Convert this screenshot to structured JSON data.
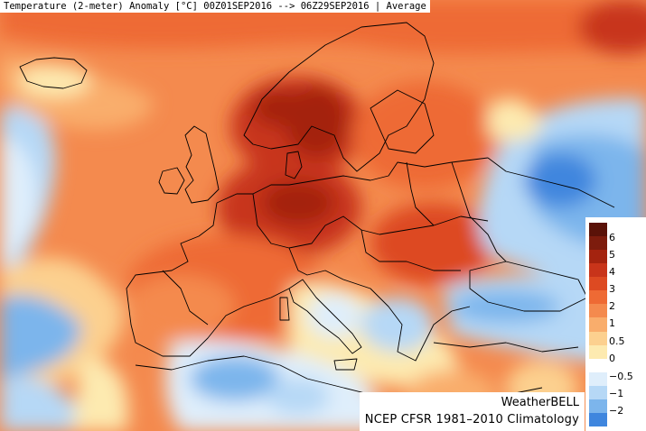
{
  "title": "Temperature (2-meter) Anomaly  [°C] 00Z01SEP2016 --> 06Z29SEP2016 | Average",
  "brand": "WeatherBELL",
  "climatology": "NCEP CFSR 1981–2010 Climatology",
  "legend": {
    "colors": [
      "#5a1208",
      "#7d1c0d",
      "#a4230f",
      "#c8341a",
      "#dd4a22",
      "#ee6a34",
      "#f48a4e",
      "#f9ad6c",
      "#fcd08f",
      "#fdeab0",
      "#ffffff",
      "#dfeefb",
      "#b6d8f6",
      "#7cb5ec",
      "#3f86de"
    ],
    "labels": [
      "6",
      "5",
      "4",
      "3",
      "2",
      "1",
      "0.5",
      "0",
      "−0.5",
      "−1",
      "−2"
    ]
  },
  "colors": {
    "land_outline": "#000000",
    "background": "#ffffff"
  }
}
